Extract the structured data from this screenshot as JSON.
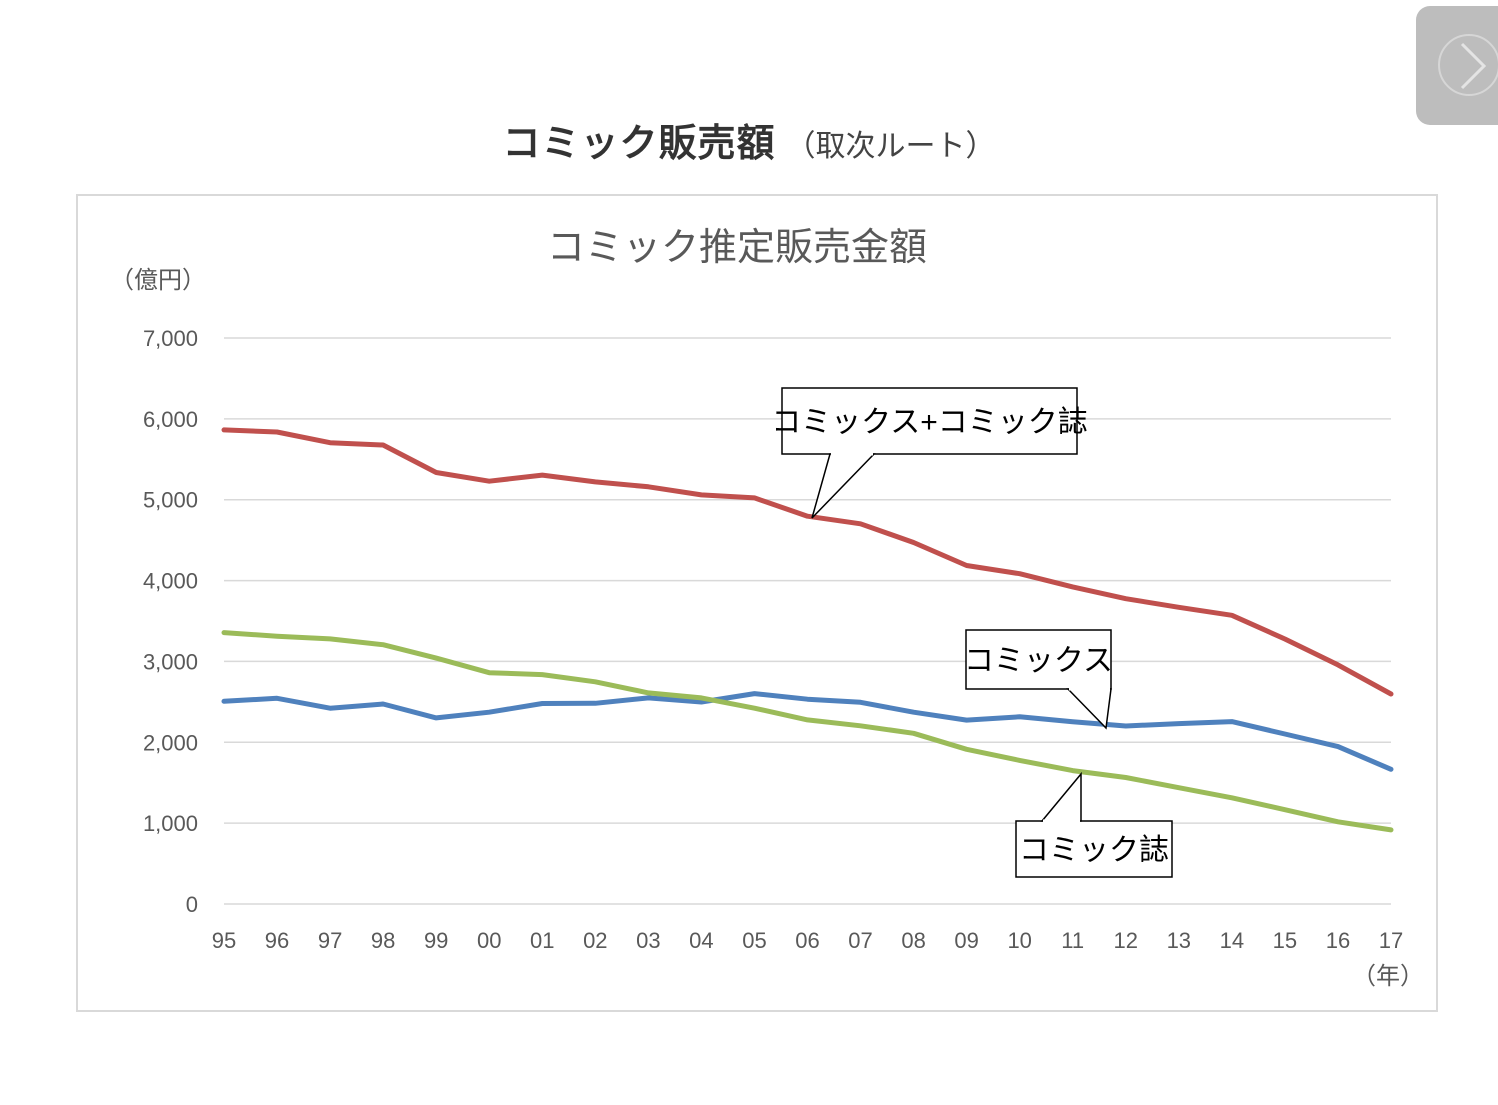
{
  "page": {
    "heading": "コミック販売額",
    "heading_sub": "（取次ルート）",
    "next_icon": "chevron-right-icon"
  },
  "chart_data": {
    "type": "line",
    "title": "コミック推定販売金額",
    "ylabel": "（億円）",
    "xlabel": "（年）",
    "ylim": [
      0,
      7000
    ],
    "yticks": [
      0,
      1000,
      2000,
      3000,
      4000,
      5000,
      6000,
      7000
    ],
    "ytick_labels": [
      "0",
      "1,000",
      "2,000",
      "3,000",
      "4,000",
      "5,000",
      "6,000",
      "7,000"
    ],
    "grid": true,
    "categories": [
      "95",
      "96",
      "97",
      "98",
      "99",
      "00",
      "01",
      "02",
      "03",
      "04",
      "05",
      "06",
      "07",
      "08",
      "09",
      "10",
      "11",
      "12",
      "13",
      "14",
      "15",
      "16",
      "17"
    ],
    "series": [
      {
        "name": "コミックス+コミック誌",
        "color": "#c0504d",
        "values": [
          5864,
          5837,
          5705,
          5677,
          5337,
          5229,
          5305,
          5220,
          5160,
          5059,
          5023,
          4796,
          4702,
          4471,
          4187,
          4085,
          3922,
          3776,
          3669,
          3571,
          3277,
          2957,
          2597
        ]
      },
      {
        "name": "コミックス",
        "color": "#4f81bd",
        "values": [
          2507,
          2544,
          2422,
          2473,
          2302,
          2372,
          2480,
          2482,
          2549,
          2498,
          2602,
          2533,
          2494,
          2372,
          2274,
          2315,
          2253,
          2202,
          2231,
          2256,
          2102,
          1947,
          1666
        ]
      },
      {
        "name": "コミック誌",
        "color": "#9bbb59",
        "values": [
          3357,
          3312,
          3279,
          3207,
          3041,
          2861,
          2837,
          2748,
          2611,
          2549,
          2421,
          2277,
          2204,
          2111,
          1913,
          1776,
          1650,
          1564,
          1438,
          1313,
          1166,
          1016,
          917
        ]
      }
    ],
    "annotations": [
      {
        "text": "コミックス+コミック誌",
        "series": "コミックス+コミック誌",
        "points_to": "06"
      },
      {
        "text": "コミックス",
        "series": "コミックス",
        "points_to": "12"
      },
      {
        "text": "コミック誌",
        "series": "コミック誌",
        "points_to": "11"
      }
    ]
  }
}
